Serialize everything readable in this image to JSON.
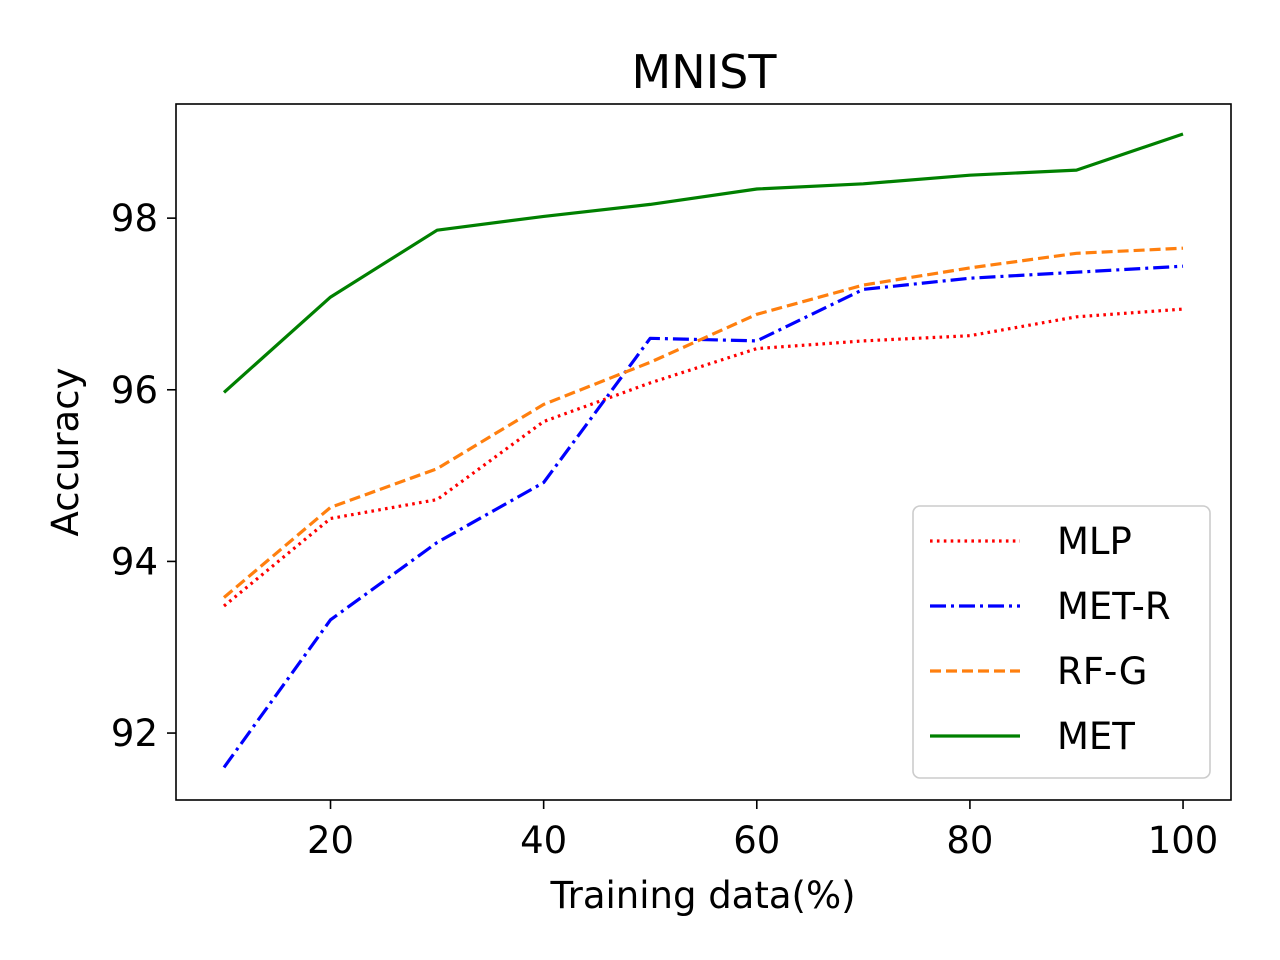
{
  "chart_data": {
    "type": "line",
    "title": "MNIST",
    "xlabel": "Training data(%)",
    "ylabel": "Accuracy",
    "xlim": [
      5.5,
      104.5
    ],
    "ylim": [
      91.22,
      99.33
    ],
    "xticks": [
      20,
      40,
      60,
      80,
      100
    ],
    "yticks": [
      92,
      94,
      96,
      98
    ],
    "x": [
      10,
      20,
      30,
      40,
      50,
      60,
      70,
      80,
      90,
      100
    ],
    "legend_position": "lower-right",
    "grid": false,
    "series": [
      {
        "name": "MLP",
        "color": "#ff0000",
        "style": "dotted",
        "values": [
          93.48,
          94.5,
          94.72,
          95.63,
          96.08,
          96.48,
          96.57,
          96.63,
          96.85,
          96.94
        ]
      },
      {
        "name": "MET-R",
        "color": "#0000ff",
        "style": "dashdot",
        "values": [
          91.6,
          93.32,
          94.22,
          94.92,
          96.6,
          96.57,
          97.17,
          97.3,
          97.37,
          97.44
        ]
      },
      {
        "name": "RF-G",
        "color": "#ff7f0e",
        "style": "dashed",
        "values": [
          93.58,
          94.63,
          95.08,
          95.83,
          96.32,
          96.88,
          97.22,
          97.42,
          97.59,
          97.65
        ]
      },
      {
        "name": "MET",
        "color": "#008000",
        "style": "solid",
        "values": [
          95.97,
          97.08,
          97.86,
          98.02,
          98.16,
          98.34,
          98.4,
          98.5,
          98.56,
          98.98
        ]
      }
    ]
  }
}
